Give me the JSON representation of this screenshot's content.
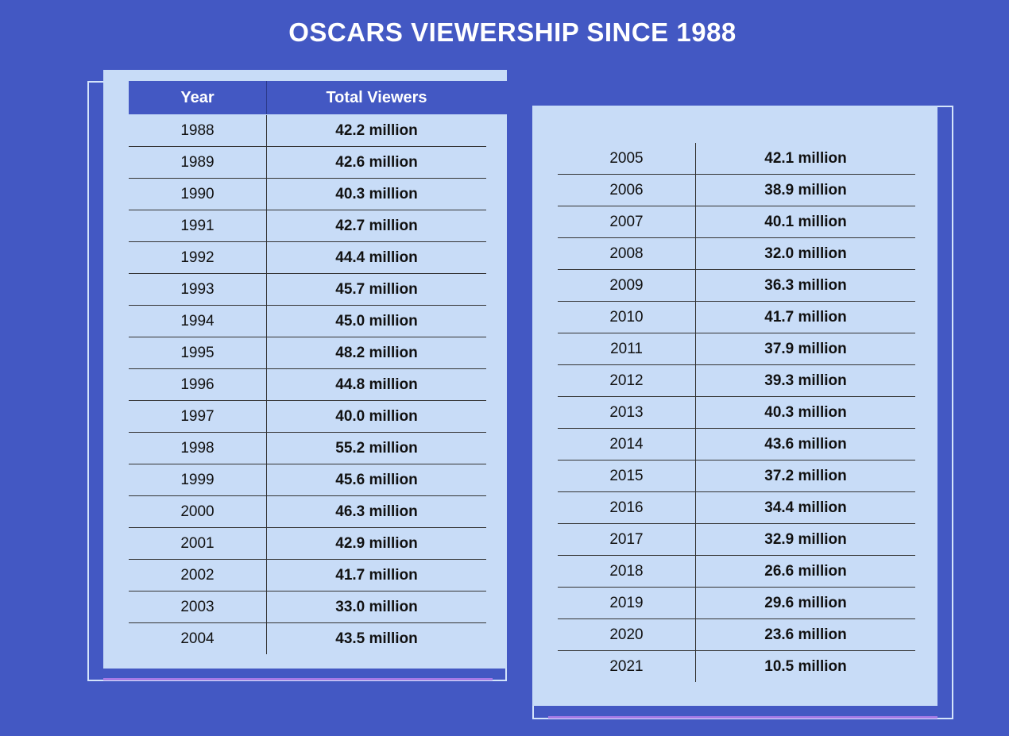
{
  "title": "OSCARS VIEWERSHIP SINCE 1988",
  "columns": {
    "year": "Year",
    "viewers": "Total Viewers"
  },
  "colors": {
    "background": "#4358c3",
    "panel": "#c8dcf7",
    "header": "#4358c3",
    "glow": "#a77be6"
  },
  "chart_data": {
    "type": "table",
    "title": "OSCARS VIEWERSHIP SINCE 1988",
    "columns": [
      "Year",
      "Total Viewers"
    ],
    "left_rows": [
      {
        "year": "1988",
        "viewers": "42.2 million"
      },
      {
        "year": "1989",
        "viewers": "42.6 million"
      },
      {
        "year": "1990",
        "viewers": "40.3 million"
      },
      {
        "year": "1991",
        "viewers": "42.7 million"
      },
      {
        "year": "1992",
        "viewers": "44.4 million"
      },
      {
        "year": "1993",
        "viewers": "45.7 million"
      },
      {
        "year": "1994",
        "viewers": "45.0 million"
      },
      {
        "year": "1995",
        "viewers": "48.2 million"
      },
      {
        "year": "1996",
        "viewers": "44.8 million"
      },
      {
        "year": "1997",
        "viewers": "40.0 million"
      },
      {
        "year": "1998",
        "viewers": "55.2 million"
      },
      {
        "year": "1999",
        "viewers": "45.6 million"
      },
      {
        "year": "2000",
        "viewers": "46.3 million"
      },
      {
        "year": "2001",
        "viewers": "42.9 million"
      },
      {
        "year": "2002",
        "viewers": "41.7 million"
      },
      {
        "year": "2003",
        "viewers": "33.0 million"
      },
      {
        "year": "2004",
        "viewers": "43.5 million"
      }
    ],
    "right_rows": [
      {
        "year": "2005",
        "viewers": "42.1 million"
      },
      {
        "year": "2006",
        "viewers": "38.9 million"
      },
      {
        "year": "2007",
        "viewers": "40.1 million"
      },
      {
        "year": "2008",
        "viewers": "32.0 million"
      },
      {
        "year": "2009",
        "viewers": "36.3 million"
      },
      {
        "year": "2010",
        "viewers": "41.7 million"
      },
      {
        "year": "2011",
        "viewers": "37.9 million"
      },
      {
        "year": "2012",
        "viewers": "39.3 million"
      },
      {
        "year": "2013",
        "viewers": "40.3 million"
      },
      {
        "year": "2014",
        "viewers": "43.6 million"
      },
      {
        "year": "2015",
        "viewers": "37.2 million"
      },
      {
        "year": "2016",
        "viewers": "34.4 million"
      },
      {
        "year": "2017",
        "viewers": "32.9 million"
      },
      {
        "year": "2018",
        "viewers": "26.6 million"
      },
      {
        "year": "2019",
        "viewers": "29.6 million"
      },
      {
        "year": "2020",
        "viewers": "23.6 million"
      },
      {
        "year": "2021",
        "viewers": "10.5 million"
      }
    ]
  }
}
